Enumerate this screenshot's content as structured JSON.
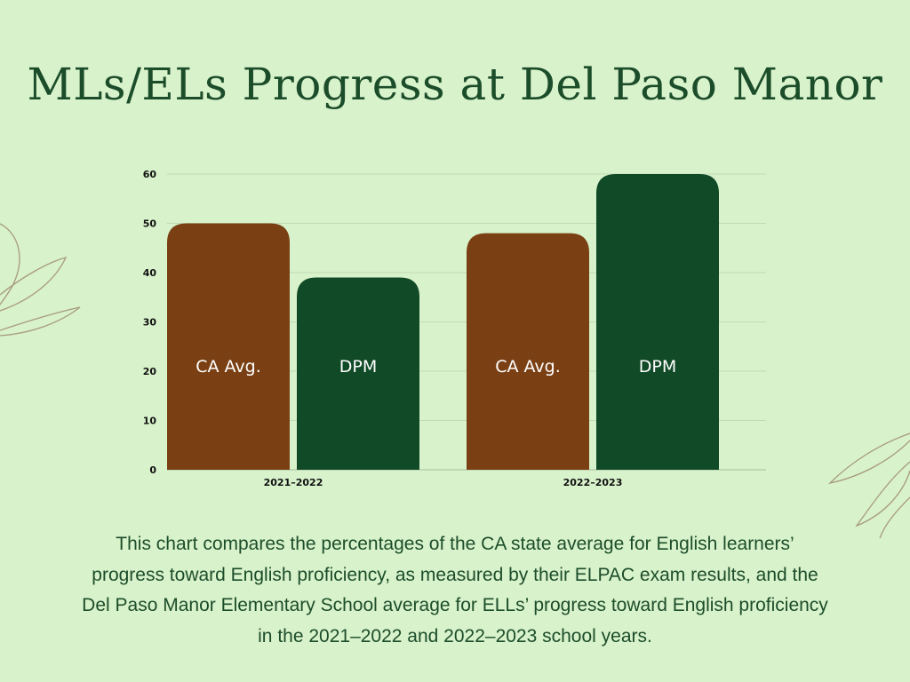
{
  "title": "MLs/ELs Progress at Del Paso Manor",
  "caption": "This chart compares the percentages of the CA state average for English learners’ progress toward English proficiency, as measured by their ELPAC exam results, and the Del Paso Manor Elementary School average for ELLs’ progress toward English proficiency in the 2021–2022 and 2022–2023 school years.",
  "colors": {
    "background": "#d8f2cb",
    "ca": "#7a4014",
    "dpm": "#114a27",
    "title": "#1c4d2a"
  },
  "chart_data": {
    "type": "bar",
    "categories": [
      "2021–2022",
      "2022–2023"
    ],
    "series": [
      {
        "name": "CA Avg.",
        "values": [
          50,
          48
        ],
        "color": "#7a4014"
      },
      {
        "name": "DPM",
        "values": [
          39,
          60
        ],
        "color": "#114a27"
      }
    ],
    "ylim": [
      0,
      60
    ],
    "yticks": [
      0,
      10,
      20,
      30,
      40,
      50,
      60
    ],
    "grid": true,
    "legend": "none (series names printed inside bars)"
  }
}
